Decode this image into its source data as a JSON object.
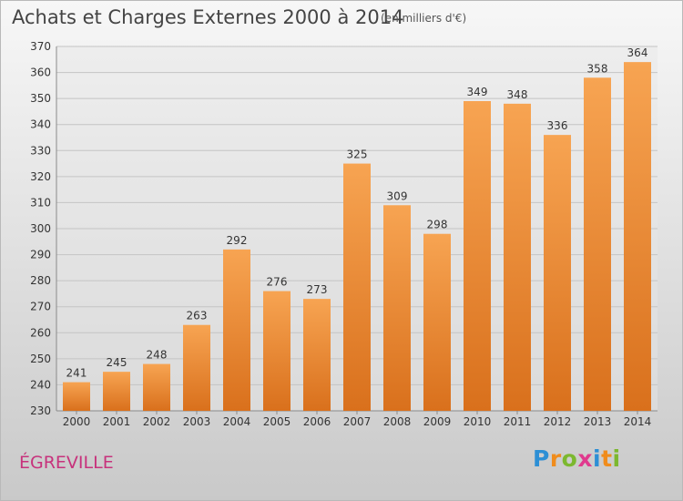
{
  "header": {
    "title": "Achats et Charges Externes 2000 à 2014",
    "unit": "(en milliers d'€)"
  },
  "footer": {
    "commune": "ÉGREVILLE",
    "logo_letters": [
      "P",
      "r",
      "o",
      "x",
      "i",
      "t",
      "i"
    ],
    "logo_colors": [
      "#2d8fd5",
      "#f08c1c",
      "#7cb82f",
      "#e03a8e",
      "#2d8fd5",
      "#f08c1c",
      "#7cb82f"
    ]
  },
  "chart_data": {
    "type": "bar",
    "title": "Achats et Charges Externes 2000 à 2014",
    "unit": "(en milliers d'€)",
    "categories": [
      "2000",
      "2001",
      "2002",
      "2003",
      "2004",
      "2005",
      "2006",
      "2007",
      "2008",
      "2009",
      "2010",
      "2011",
      "2012",
      "2013",
      "2014"
    ],
    "values": [
      241,
      245,
      248,
      263,
      292,
      276,
      273,
      325,
      309,
      298,
      349,
      348,
      336,
      358,
      364
    ],
    "ylim": [
      230,
      370
    ],
    "yticks": [
      230,
      240,
      250,
      260,
      270,
      280,
      290,
      300,
      310,
      320,
      330,
      340,
      350,
      360,
      370
    ],
    "grid": true,
    "bar_color_light": "#f7a452",
    "bar_color_dark": "#d9701c"
  }
}
